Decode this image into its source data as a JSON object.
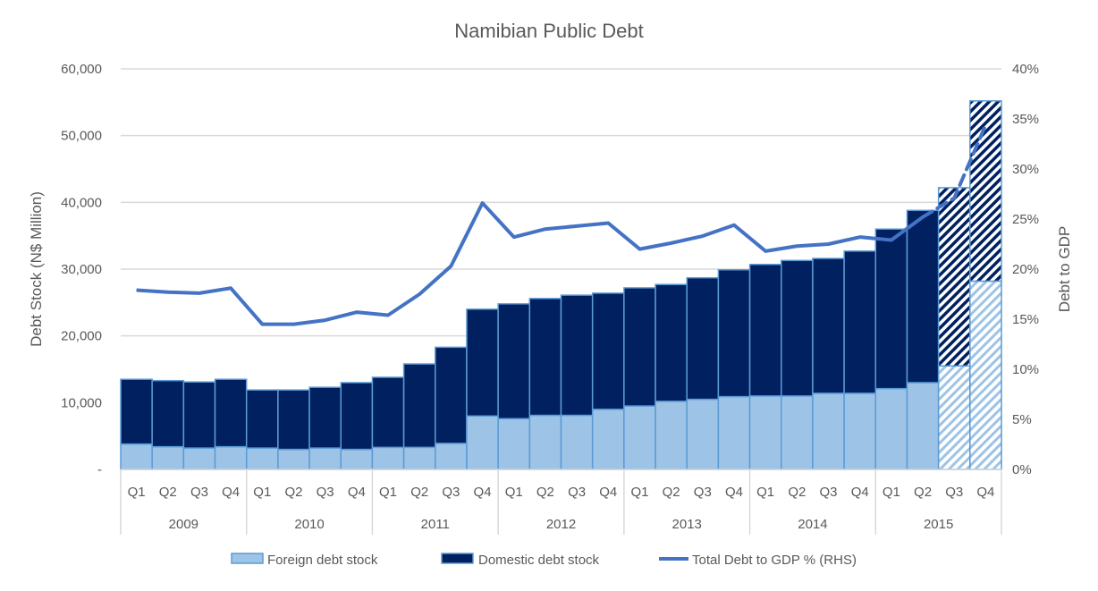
{
  "chart_data": {
    "type": "bar+line",
    "title": "Namibian Public Debt",
    "ylabel": "Debt Stock (N$ Million)",
    "y2label": "Debt to GDP",
    "ylim": [
      0,
      60000
    ],
    "y2lim": [
      0,
      40
    ],
    "yticks": [
      "-",
      "10,000",
      "20,000",
      "30,000",
      "40,000",
      "50,000",
      "60,000"
    ],
    "y2ticks": [
      "0%",
      "5%",
      "10%",
      "15%",
      "20%",
      "25%",
      "30%",
      "35%",
      "40%"
    ],
    "grid": true,
    "legend_position": "bottom",
    "years": [
      "2009",
      "2010",
      "2011",
      "2012",
      "2013",
      "2014",
      "2015"
    ],
    "quarters": [
      "Q1",
      "Q2",
      "Q3",
      "Q4"
    ],
    "projected": [
      false,
      false,
      false,
      false,
      false,
      false,
      false,
      false,
      false,
      false,
      false,
      false,
      false,
      false,
      false,
      false,
      false,
      false,
      false,
      false,
      false,
      false,
      false,
      false,
      false,
      false,
      true,
      true
    ],
    "series": [
      {
        "name": "Foreign debt stock",
        "type": "stacked-bar",
        "color": "#9dc3e6",
        "values": [
          3800,
          3400,
          3200,
          3400,
          3200,
          3000,
          3200,
          3000,
          3300,
          3300,
          3900,
          8000,
          7600,
          8100,
          8100,
          9000,
          9500,
          10200,
          10500,
          10900,
          11000,
          11000,
          11400,
          11400,
          12100,
          13000,
          15500,
          28200
        ]
      },
      {
        "name": "Domestic debt stock",
        "type": "stacked-bar",
        "color": "#002060",
        "values": [
          9700,
          9900,
          9900,
          10100,
          8700,
          8900,
          9100,
          10000,
          10500,
          12500,
          14400,
          16000,
          17200,
          17500,
          18000,
          17400,
          17700,
          17500,
          18200,
          19000,
          19700,
          20300,
          20200,
          21300,
          23900,
          25800,
          26700,
          27000
        ]
      },
      {
        "name": "Total Debt to GDP % (RHS)",
        "type": "line",
        "axis": "right",
        "color": "#4472c4",
        "values": [
          17.9,
          17.7,
          17.6,
          18.1,
          14.5,
          14.5,
          14.9,
          15.7,
          15.4,
          17.5,
          20.3,
          26.6,
          23.2,
          24.0,
          24.3,
          24.6,
          22.0,
          22.6,
          23.3,
          24.4,
          21.8,
          22.3,
          22.5,
          23.2,
          22.9,
          25.2,
          27.1,
          34.4
        ]
      }
    ],
    "bar_border_color": "#5b9bd5",
    "grid_color": "#d9d9d9"
  }
}
